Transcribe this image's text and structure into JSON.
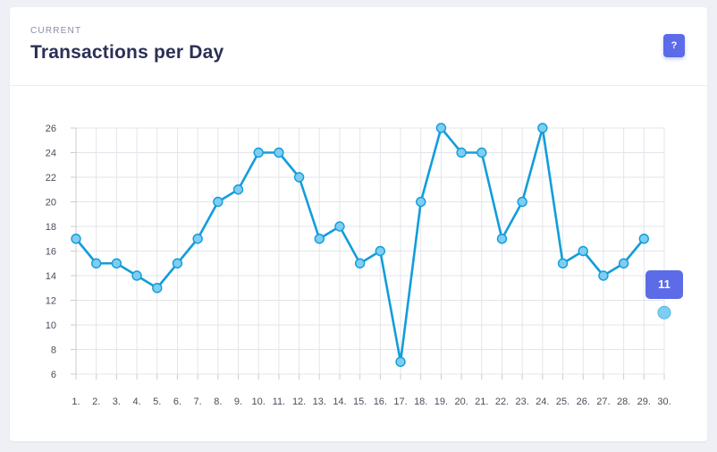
{
  "header": {
    "eyebrow": "CURRENT",
    "title": "Transactions per Day",
    "help_label": "?"
  },
  "colors": {
    "line": "#129ddb",
    "point_fill": "#7fcdf0",
    "highlight_point": "#7fcdf0",
    "accent": "#5c6be8",
    "grid": "#e3e5ea"
  },
  "chart_data": {
    "type": "line",
    "categories": [
      "1.",
      "2.",
      "3.",
      "4.",
      "5.",
      "6.",
      "7.",
      "8.",
      "9.",
      "10.",
      "11.",
      "12.",
      "13.",
      "14.",
      "15.",
      "16.",
      "17.",
      "18.",
      "19.",
      "20.",
      "21.",
      "22.",
      "23.",
      "24.",
      "25.",
      "26.",
      "27.",
      "28.",
      "29.",
      "30."
    ],
    "values": [
      17,
      15,
      15,
      14,
      13,
      15,
      17,
      20,
      21,
      24,
      24,
      22,
      17,
      18,
      15,
      16,
      7,
      20,
      26,
      24,
      24,
      17,
      20,
      26,
      15,
      16,
      14,
      15,
      17,
      11
    ],
    "connected_points": 29,
    "highlight": {
      "category": "30.",
      "value": 11,
      "label": "11"
    },
    "yticks": [
      6,
      8,
      10,
      12,
      14,
      16,
      18,
      20,
      22,
      24,
      26
    ],
    "ylim": [
      6,
      26
    ],
    "grid": true,
    "title": "Transactions per Day",
    "xlabel": "",
    "ylabel": ""
  }
}
